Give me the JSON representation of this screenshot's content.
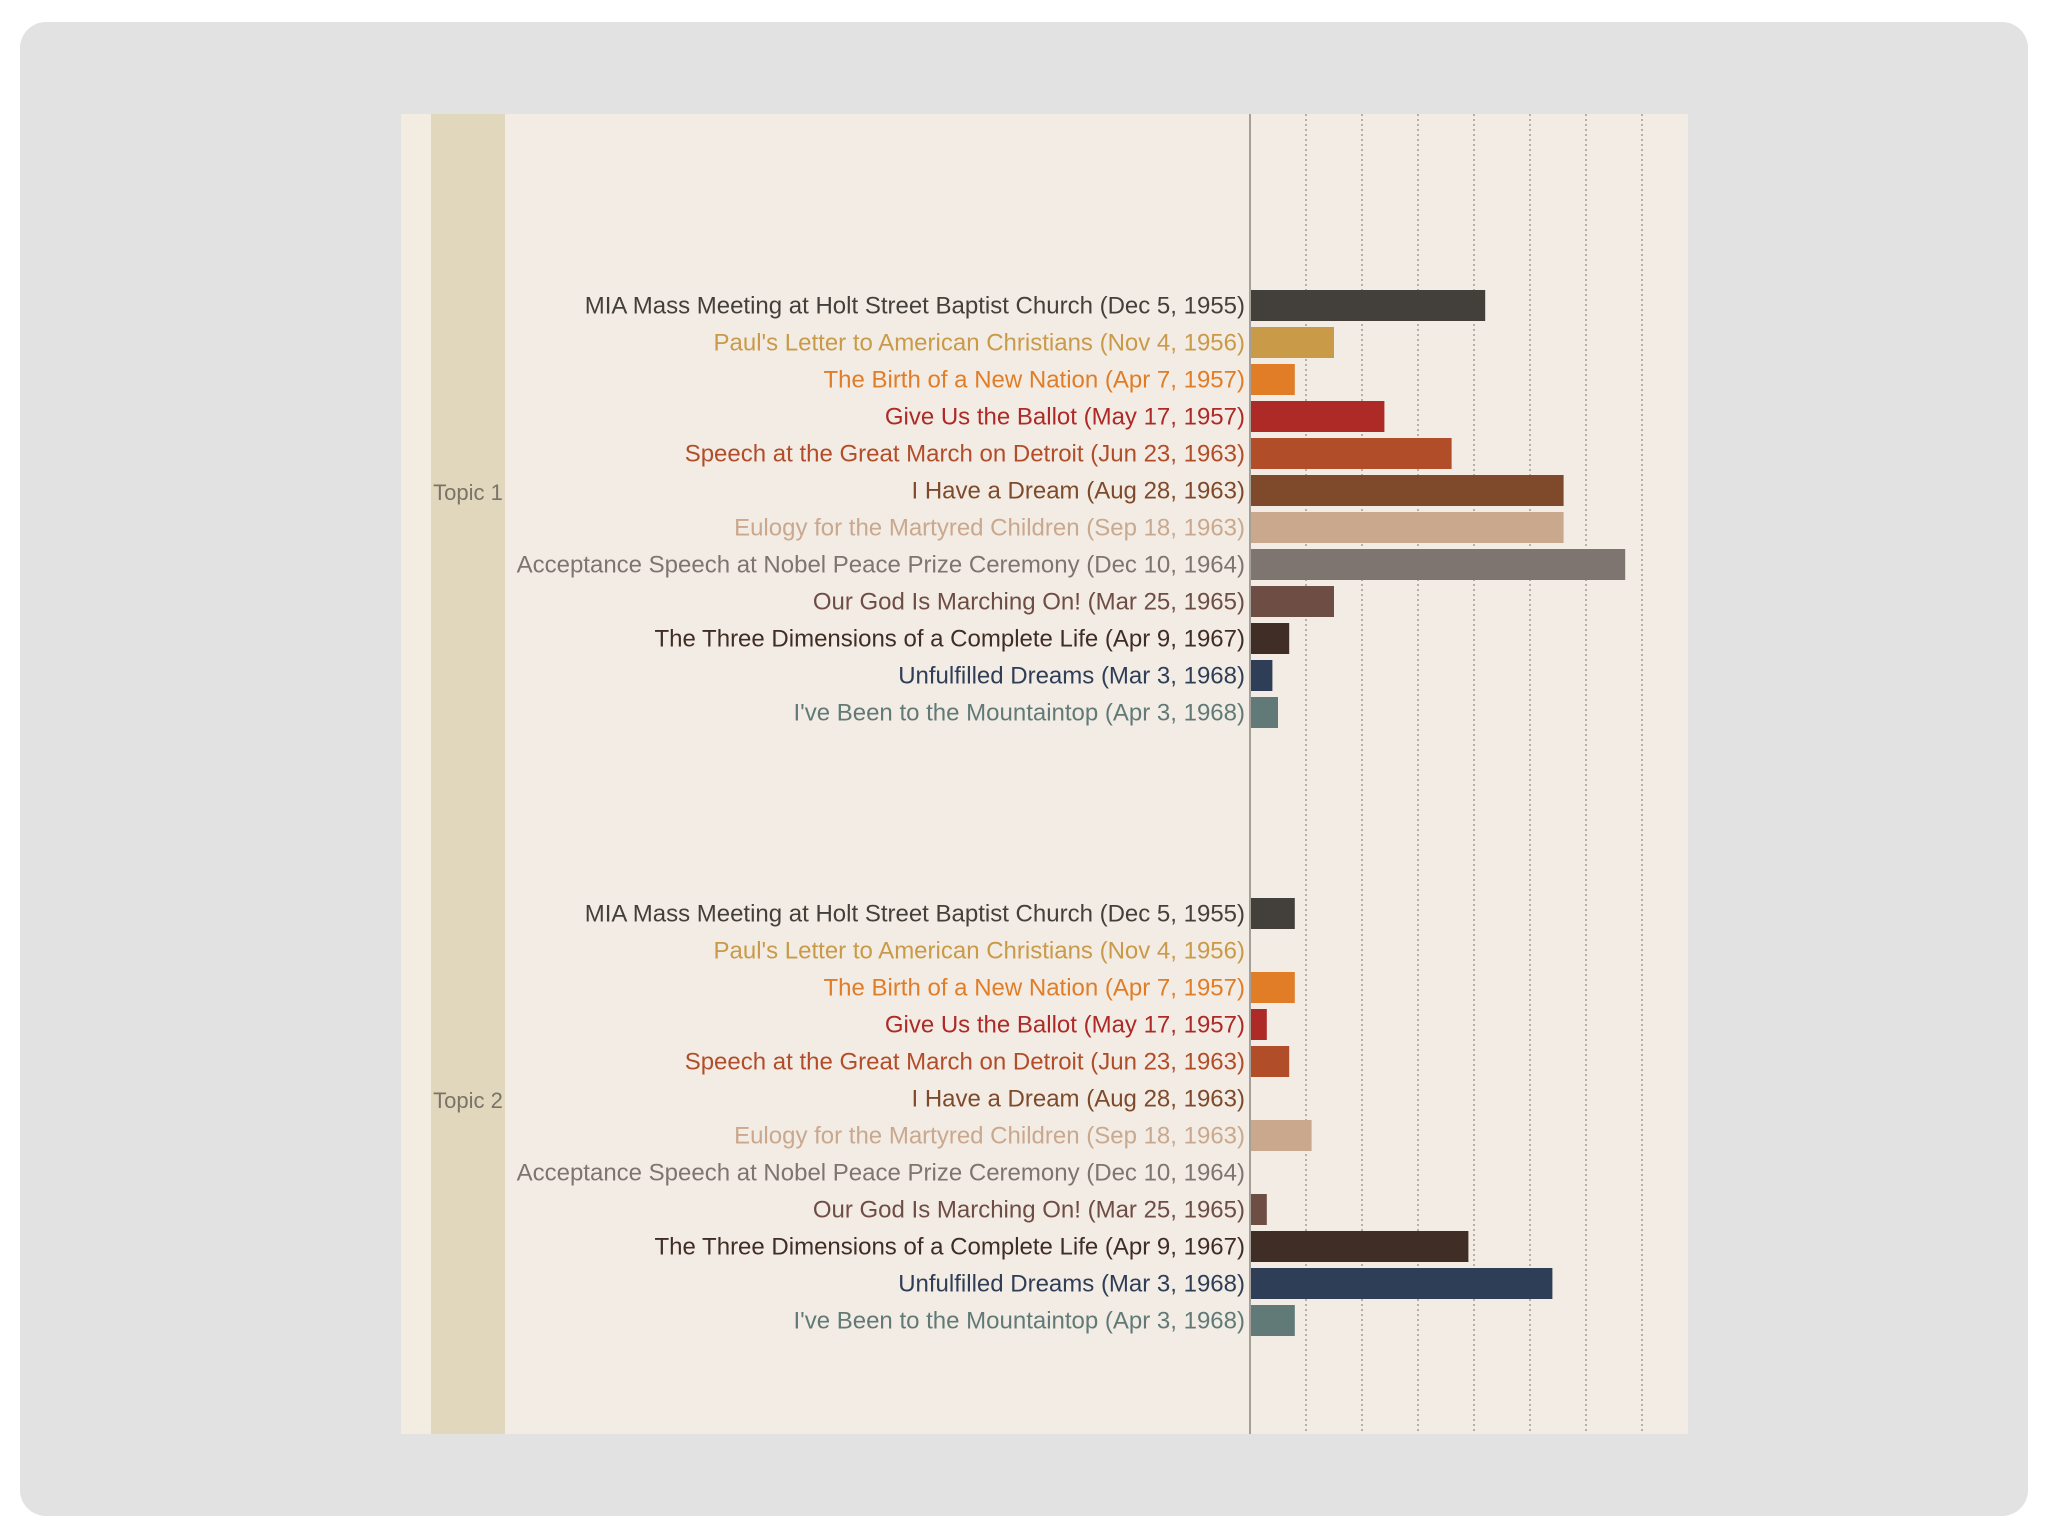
{
  "chart_data": {
    "type": "bar",
    "orientation": "horizontal",
    "grid": true,
    "xlim": [
      0,
      7
    ],
    "colors": [
      "#433f3b",
      "#c99a48",
      "#e17d27",
      "#ad2a26",
      "#b24d2a",
      "#7e4a2b",
      "#c9a88e",
      "#7e7470",
      "#6e4d45",
      "#402d26",
      "#2f3e57",
      "#617a78"
    ],
    "groups": [
      {
        "name": "Topic 1",
        "items": [
          {
            "label": "MIA Mass Meeting at Holt Street Baptist Church (Dec 5, 1955)",
            "value": 4.2
          },
          {
            "label": "Paul's Letter to American Christians (Nov 4, 1956)",
            "value": 1.5
          },
          {
            "label": "The Birth of a New Nation (Apr 7, 1957)",
            "value": 0.8
          },
          {
            "label": "Give Us the Ballot (May 17, 1957)",
            "value": 2.4
          },
          {
            "label": "Speech at the Great March on Detroit (Jun 23, 1963)",
            "value": 3.6
          },
          {
            "label": "I Have a Dream (Aug 28, 1963)",
            "value": 5.6
          },
          {
            "label": "Eulogy for the Martyred Children (Sep 18, 1963)",
            "value": 5.6
          },
          {
            "label": "Acceptance Speech at Nobel Peace Prize Ceremony (Dec 10, 1964)",
            "value": 6.7
          },
          {
            "label": "Our God Is Marching On! (Mar 25, 1965)",
            "value": 1.5
          },
          {
            "label": "The Three Dimensions of a Complete Life (Apr 9, 1967)",
            "value": 0.7
          },
          {
            "label": "Unfulfilled Dreams (Mar 3, 1968)",
            "value": 0.4
          },
          {
            "label": "I've Been to the Mountaintop (Apr 3, 1968)",
            "value": 0.5
          }
        ]
      },
      {
        "name": "Topic 2",
        "items": [
          {
            "label": "MIA Mass Meeting at Holt Street Baptist Church (Dec 5, 1955)",
            "value": 0.8
          },
          {
            "label": "Paul's Letter to American Christians (Nov 4, 1956)",
            "value": 0
          },
          {
            "label": "The Birth of a New Nation (Apr 7, 1957)",
            "value": 0.8
          },
          {
            "label": "Give Us the Ballot (May 17, 1957)",
            "value": 0.3
          },
          {
            "label": "Speech at the Great March on Detroit (Jun 23, 1963)",
            "value": 0.7
          },
          {
            "label": "I Have a Dream (Aug 28, 1963)",
            "value": 0
          },
          {
            "label": "Eulogy for the Martyred Children (Sep 18, 1963)",
            "value": 1.1
          },
          {
            "label": "Acceptance Speech at Nobel Peace Prize Ceremony (Dec 10, 1964)",
            "value": 0
          },
          {
            "label": "Our God Is Marching On! (Mar 25, 1965)",
            "value": 0.3
          },
          {
            "label": "The Three Dimensions of a Complete Life (Apr 9, 1967)",
            "value": 3.9
          },
          {
            "label": "Unfulfilled Dreams (Mar 3, 1968)",
            "value": 5.4
          },
          {
            "label": "I've Been to the Mountaintop (Apr 3, 1968)",
            "value": 0.8
          }
        ]
      }
    ]
  }
}
